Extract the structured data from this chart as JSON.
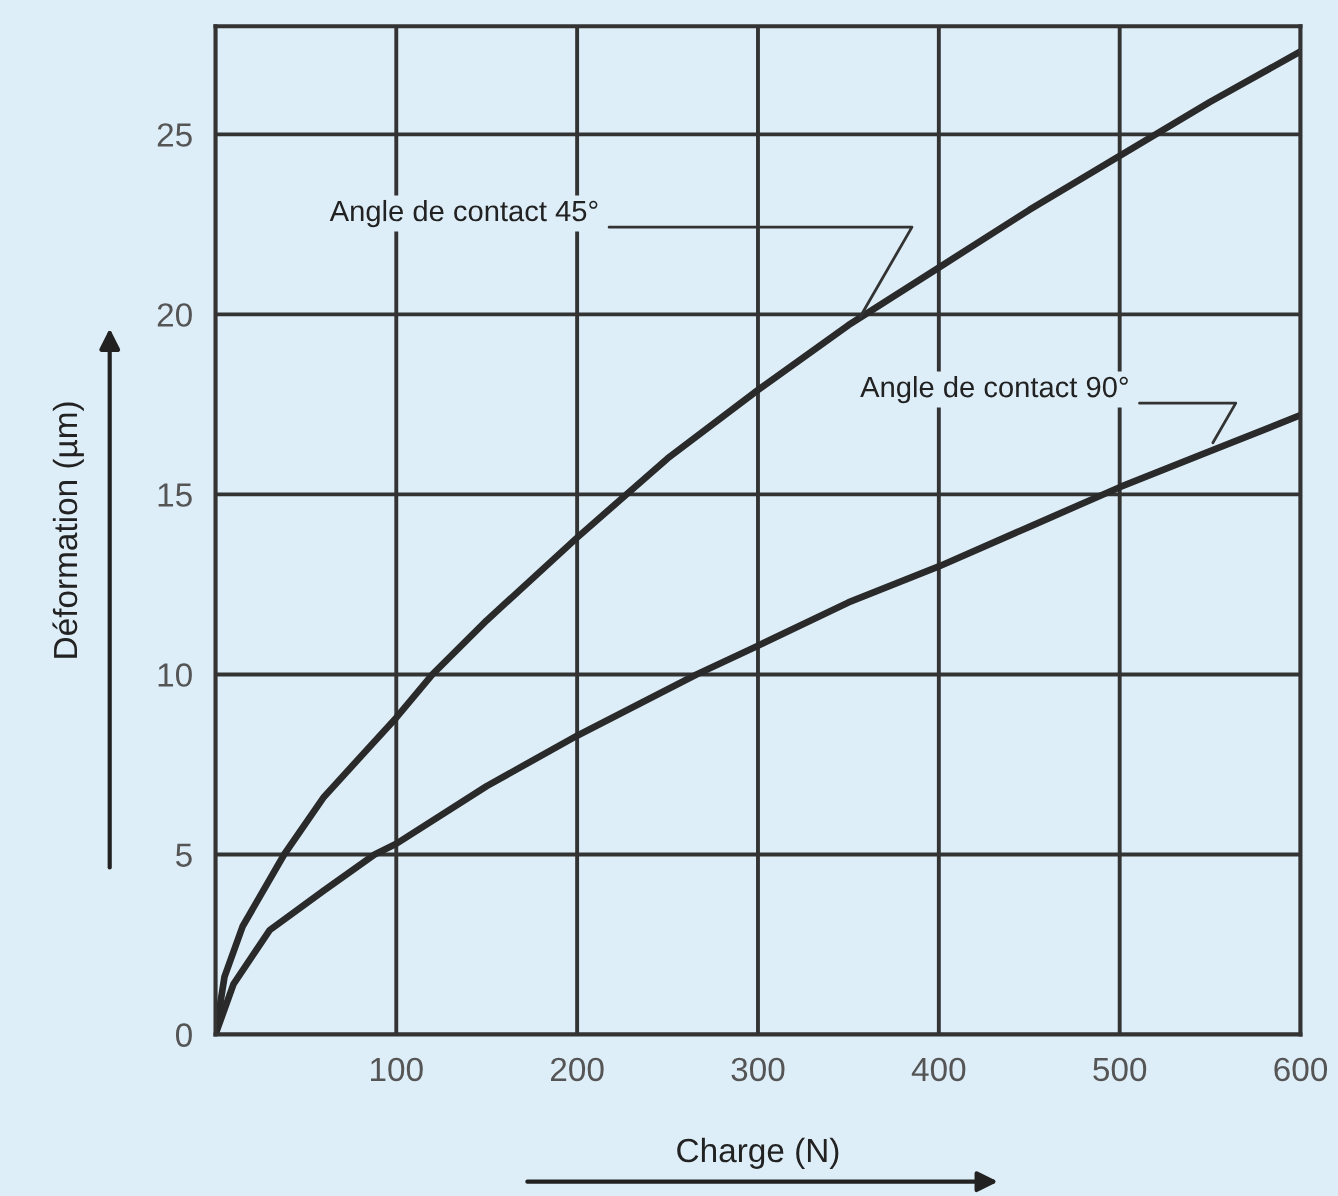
{
  "chart_data": {
    "type": "line",
    "xlabel": "Charge (N)",
    "ylabel": "Déformation (µm)",
    "xlim": [
      0,
      600
    ],
    "ylim": [
      0,
      28
    ],
    "xticks": [
      {
        "value": 0,
        "label": null
      },
      100,
      200,
      300,
      400,
      500,
      600
    ],
    "yticks": [
      0,
      5,
      10,
      15,
      20,
      25
    ],
    "grid": true,
    "marker": "none",
    "line_style": "solid",
    "series": [
      {
        "color": "#2a2a2a",
        "x": [
          0,
          5,
          15,
          38,
          60,
          100,
          120,
          150,
          200,
          250,
          300,
          350,
          400,
          450,
          500,
          550,
          600
        ],
        "values": [
          0,
          1.6,
          3,
          5,
          6.6,
          8.8,
          10,
          11.5,
          13.8,
          16,
          17.9,
          19.7,
          21.3,
          22.9,
          24.4,
          25.9,
          27.3
        ]
      },
      {
        "color": "#2a2a2a",
        "x": [
          0,
          10,
          30,
          60,
          88,
          100,
          150,
          200,
          266,
          300,
          350,
          400,
          450,
          500,
          550,
          600
        ],
        "values": [
          0,
          1.4,
          2.9,
          4,
          5,
          5.3,
          6.9,
          8.3,
          10,
          10.8,
          12,
          13,
          14.1,
          15.2,
          16.2,
          17.2
        ]
      }
    ],
    "annotations": [
      {
        "text": "Angle de contact 45°",
        "x": 355,
        "y": 19.8
      },
      {
        "text": "Angle de contact 90°",
        "x": 550,
        "y": 16.3
      }
    ]
  }
}
